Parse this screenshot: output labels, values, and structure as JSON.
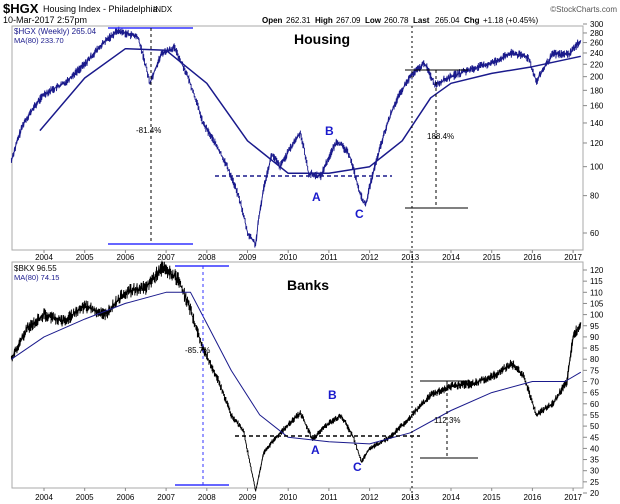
{
  "header": {
    "symbol": "$HGX",
    "name": "Housing Index - Philadelphia",
    "exchange": "INDX",
    "brand": "©StockCharts.com",
    "datetime": "10-Mar-2017 2:57pm",
    "open_label": "Open",
    "open": "262.31",
    "high_label": "High",
    "high": "267.09",
    "low_label": "Low",
    "low": "260.78",
    "last_label": "Last",
    "last": "265.04",
    "chg_label": "Chg",
    "chg": "+1.18 (+0.45%)"
  },
  "colors": {
    "price": "#000000",
    "hgx_price": "#1a1a8c",
    "ma": "#1a1a8c",
    "annot_blue": "#3333ff",
    "label_blue": "#1a1acc"
  },
  "chart_data": [
    {
      "type": "line",
      "title": "Housing",
      "legend": [
        "$HGX (Weekly) 265.04",
        "MA(80) 233.70"
      ],
      "legend_placement": "top-left",
      "yscale": "log",
      "ylim": [
        50,
        310
      ],
      "yticks": [
        300,
        280,
        260,
        240,
        220,
        200,
        180,
        160,
        140,
        120,
        100,
        80,
        60
      ],
      "xticks": [
        "2004",
        "2005",
        "2006",
        "2007",
        "2008",
        "2009",
        "2010",
        "2011",
        "2012",
        "2013",
        "2014",
        "2015",
        "2016",
        "2017"
      ],
      "series": [
        {
          "name": "$HGX",
          "points": [
            [
              2003.2,
              105
            ],
            [
              2003.5,
              140
            ],
            [
              2004.0,
              175
            ],
            [
              2004.5,
              190
            ],
            [
              2005.0,
              220
            ],
            [
              2005.5,
              262
            ],
            [
              2005.8,
              285
            ],
            [
              2006.3,
              272
            ],
            [
              2006.6,
              190
            ],
            [
              2006.9,
              240
            ],
            [
              2007.2,
              250
            ],
            [
              2007.5,
              205
            ],
            [
              2007.9,
              140
            ],
            [
              2008.2,
              120
            ],
            [
              2008.5,
              100
            ],
            [
              2008.8,
              78
            ],
            [
              2009.0,
              60
            ],
            [
              2009.2,
              55
            ],
            [
              2009.4,
              85
            ],
            [
              2009.6,
              110
            ],
            [
              2009.8,
              100
            ],
            [
              2010.0,
              112
            ],
            [
              2010.3,
              130
            ],
            [
              2010.5,
              95
            ],
            [
              2010.8,
              93
            ],
            [
              2011.2,
              122
            ],
            [
              2011.5,
              110
            ],
            [
              2011.75,
              82
            ],
            [
              2011.9,
              74
            ],
            [
              2012.2,
              108
            ],
            [
              2012.6,
              160
            ],
            [
              2013.0,
              200
            ],
            [
              2013.35,
              222
            ],
            [
              2013.6,
              188
            ],
            [
              2014.0,
              200
            ],
            [
              2014.5,
              212
            ],
            [
              2015.0,
              222
            ],
            [
              2015.5,
              240
            ],
            [
              2015.9,
              232
            ],
            [
              2016.1,
              192
            ],
            [
              2016.5,
              238
            ],
            [
              2016.9,
              238
            ],
            [
              2017.19,
              265
            ]
          ]
        },
        {
          "name": "MA(80)",
          "points": [
            [
              2003.9,
              132
            ],
            [
              2005,
              198
            ],
            [
              2006,
              248
            ],
            [
              2007,
              245
            ],
            [
              2008,
              190
            ],
            [
              2009,
              122
            ],
            [
              2010,
              95
            ],
            [
              2011,
              95
            ],
            [
              2012,
              100
            ],
            [
              2012.8,
              122
            ],
            [
              2013.5,
              170
            ],
            [
              2014,
              190
            ],
            [
              2015,
              205
            ],
            [
              2016,
              216
            ],
            [
              2017.19,
              234
            ]
          ]
        }
      ],
      "annotations": {
        "decline": "-81.4%",
        "gain": "188.4%",
        "labels": [
          "A",
          "B",
          "C"
        ]
      }
    },
    {
      "type": "line",
      "title": "Banks",
      "legend": [
        "$BKX 96.55",
        "MA(80) 74.15"
      ],
      "legend_placement": "top-left",
      "yscale": "linear",
      "ylim": [
        18,
        122
      ],
      "yticks": [
        120,
        115,
        110,
        105,
        100,
        95,
        90,
        85,
        80,
        75,
        70,
        65,
        60,
        55,
        50,
        45,
        40,
        35,
        30,
        25,
        20
      ],
      "xticks": [
        "2004",
        "2005",
        "2006",
        "2007",
        "2008",
        "2009",
        "2010",
        "2011",
        "2012",
        "2013",
        "2014",
        "2015",
        "2016",
        "2017"
      ],
      "series": [
        {
          "name": "$BKX",
          "points": [
            [
              2003.2,
              80
            ],
            [
              2003.6,
              94
            ],
            [
              2004.0,
              100
            ],
            [
              2004.5,
              97
            ],
            [
              2005.0,
              104
            ],
            [
              2005.5,
              100
            ],
            [
              2006.0,
              110
            ],
            [
              2006.5,
              112
            ],
            [
              2006.9,
              121
            ],
            [
              2007.3,
              116
            ],
            [
              2007.6,
              102
            ],
            [
              2007.9,
              85
            ],
            [
              2008.3,
              70
            ],
            [
              2008.6,
              55
            ],
            [
              2008.9,
              48
            ],
            [
              2009.2,
              21
            ],
            [
              2009.4,
              38
            ],
            [
              2009.7,
              45
            ],
            [
              2010.3,
              56
            ],
            [
              2010.6,
              44
            ],
            [
              2010.9,
              50
            ],
            [
              2011.3,
              55
            ],
            [
              2011.6,
              45
            ],
            [
              2011.8,
              34
            ],
            [
              2012.0,
              40
            ],
            [
              2012.5,
              45
            ],
            [
              2013.0,
              54
            ],
            [
              2013.5,
              64
            ],
            [
              2014.0,
              68
            ],
            [
              2014.5,
              69
            ],
            [
              2015.0,
              72
            ],
            [
              2015.5,
              78
            ],
            [
              2015.8,
              72
            ],
            [
              2016.1,
              55
            ],
            [
              2016.5,
              60
            ],
            [
              2016.85,
              70
            ],
            [
              2017.0,
              90
            ],
            [
              2017.19,
              96.55
            ]
          ]
        },
        {
          "name": "MA(80)",
          "points": [
            [
              2003.2,
              80
            ],
            [
              2004,
              90
            ],
            [
              2005,
              98
            ],
            [
              2006,
              105
            ],
            [
              2007,
              110
            ],
            [
              2007.6,
              110
            ],
            [
              2008,
              96
            ],
            [
              2008.6,
              75
            ],
            [
              2009.3,
              55
            ],
            [
              2010,
              45
            ],
            [
              2011,
              43
            ],
            [
              2012,
              42
            ],
            [
              2013,
              47
            ],
            [
              2014,
              57
            ],
            [
              2015,
              65
            ],
            [
              2016,
              70
            ],
            [
              2016.8,
              70
            ],
            [
              2017.19,
              74.15
            ]
          ]
        }
      ],
      "annotations": {
        "decline": "-85.7%",
        "gain": "112.3%",
        "labels": [
          "A",
          "B",
          "C"
        ]
      }
    }
  ]
}
